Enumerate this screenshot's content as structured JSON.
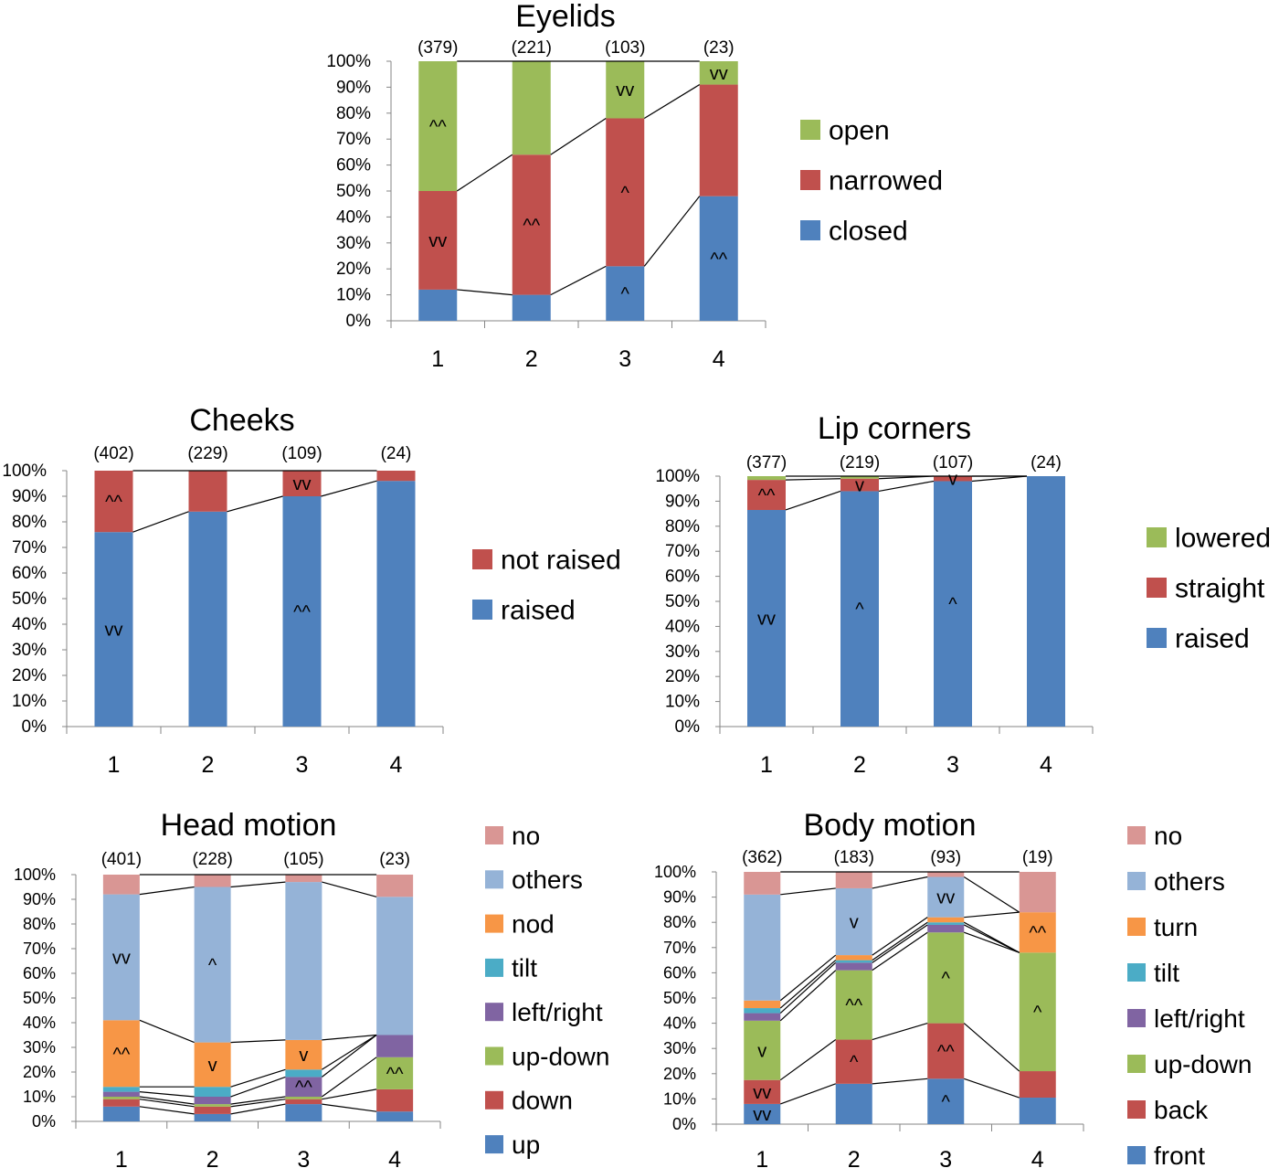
{
  "chart_data": [
    {
      "id": "eyelids",
      "type": "bar",
      "stacked": true,
      "title": "Eyelids",
      "categories": [
        "1",
        "2",
        "3",
        "4"
      ],
      "counts": [
        "(379)",
        "(221)",
        "(103)",
        "(23)"
      ],
      "ylim": [
        0,
        100
      ],
      "yticks": [
        "0%",
        "10%",
        "20%",
        "30%",
        "40%",
        "50%",
        "60%",
        "70%",
        "80%",
        "90%",
        "100%"
      ],
      "series": [
        {
          "name": "closed",
          "color": "#4F81BD",
          "values": [
            12,
            10,
            21,
            48
          ]
        },
        {
          "name": "narrowed",
          "color": "#C0504D",
          "values": [
            38,
            54,
            57,
            43
          ]
        },
        {
          "name": "open",
          "color": "#9BBB59",
          "values": [
            50,
            36,
            22,
            9
          ]
        }
      ],
      "annotations": [
        {
          "series": "narrowed",
          "category": "1",
          "text": "vv"
        },
        {
          "series": "open",
          "category": "1",
          "text": "^^"
        },
        {
          "series": "narrowed",
          "category": "2",
          "text": "^^"
        },
        {
          "series": "closed",
          "category": "3",
          "text": "^"
        },
        {
          "series": "narrowed",
          "category": "3",
          "text": "^"
        },
        {
          "series": "open",
          "category": "3",
          "text": "vv"
        },
        {
          "series": "closed",
          "category": "4",
          "text": "^^"
        },
        {
          "series": "open",
          "category": "4",
          "text": "vv"
        }
      ]
    },
    {
      "id": "cheeks",
      "type": "bar",
      "stacked": true,
      "title": "Cheeks",
      "categories": [
        "1",
        "2",
        "3",
        "4"
      ],
      "counts": [
        "(402)",
        "(229)",
        "(109)",
        "(24)"
      ],
      "ylim": [
        0,
        100
      ],
      "yticks": [
        "0%",
        "10%",
        "20%",
        "30%",
        "40%",
        "50%",
        "60%",
        "70%",
        "80%",
        "90%",
        "100%"
      ],
      "series": [
        {
          "name": "raised",
          "color": "#4F81BD",
          "values": [
            76,
            84,
            90,
            96
          ]
        },
        {
          "name": "not raised",
          "color": "#C0504D",
          "values": [
            24,
            16,
            10,
            4
          ]
        }
      ],
      "annotations": [
        {
          "series": "raised",
          "category": "1",
          "text": "vv"
        },
        {
          "series": "not raised",
          "category": "1",
          "text": "^^"
        },
        {
          "series": "raised",
          "category": "3",
          "text": "^^"
        },
        {
          "series": "not raised",
          "category": "3",
          "text": "vv"
        }
      ]
    },
    {
      "id": "lip-corners",
      "type": "bar",
      "stacked": true,
      "title": "Lip corners",
      "categories": [
        "1",
        "2",
        "3",
        "4"
      ],
      "counts": [
        "(377)",
        "(219)",
        "(107)",
        "(24)"
      ],
      "ylim": [
        0,
        100
      ],
      "yticks": [
        "0%",
        "10%",
        "20%",
        "30%",
        "40%",
        "50%",
        "60%",
        "70%",
        "80%",
        "90%",
        "100%"
      ],
      "series": [
        {
          "name": "raised",
          "color": "#4F81BD",
          "values": [
            86.5,
            94,
            98,
            100
          ]
        },
        {
          "name": "straight",
          "color": "#C0504D",
          "values": [
            12,
            5,
            2,
            0
          ]
        },
        {
          "name": "lowered",
          "color": "#9BBB59",
          "values": [
            1.5,
            1,
            0,
            0
          ]
        }
      ],
      "annotations": [
        {
          "series": "raised",
          "category": "1",
          "text": "vv"
        },
        {
          "series": "straight",
          "category": "1",
          "text": "^^"
        },
        {
          "series": "raised",
          "category": "2",
          "text": "^"
        },
        {
          "series": "straight",
          "category": "2",
          "text": "v"
        },
        {
          "series": "raised",
          "category": "3",
          "text": "^"
        },
        {
          "series": "straight",
          "category": "3",
          "text": "v"
        }
      ]
    },
    {
      "id": "head-motion",
      "type": "bar",
      "stacked": true,
      "title": "Head motion",
      "categories": [
        "1",
        "2",
        "3",
        "4"
      ],
      "counts": [
        "(401)",
        "(228)",
        "(105)",
        "(23)"
      ],
      "ylim": [
        0,
        100
      ],
      "yticks": [
        "0%",
        "10%",
        "20%",
        "30%",
        "40%",
        "50%",
        "60%",
        "70%",
        "80%",
        "90%",
        "100%"
      ],
      "series": [
        {
          "name": "up",
          "color": "#4F81BD",
          "values": [
            6,
            3,
            7,
            4
          ]
        },
        {
          "name": "down",
          "color": "#C0504D",
          "values": [
            3,
            3,
            2,
            9
          ]
        },
        {
          "name": "up-down",
          "color": "#9BBB59",
          "values": [
            1,
            1,
            1,
            13
          ]
        },
        {
          "name": "left/right",
          "color": "#8064A2",
          "values": [
            2,
            3,
            8,
            9
          ]
        },
        {
          "name": "tilt",
          "color": "#4BACC6",
          "values": [
            2,
            4,
            3,
            0
          ]
        },
        {
          "name": "nod",
          "color": "#F79646",
          "values": [
            27,
            18,
            12,
            0
          ]
        },
        {
          "name": "others",
          "color": "#95B3D7",
          "values": [
            51,
            63,
            64,
            56
          ]
        },
        {
          "name": "no",
          "color": "#D99694",
          "values": [
            8,
            5,
            3,
            9
          ]
        }
      ],
      "annotations": [
        {
          "series": "nod",
          "category": "1",
          "text": "^^"
        },
        {
          "series": "others",
          "category": "1",
          "text": "vv"
        },
        {
          "series": "nod",
          "category": "2",
          "text": "v"
        },
        {
          "series": "others",
          "category": "2",
          "text": "^"
        },
        {
          "series": "left/right",
          "category": "3",
          "text": "^^"
        },
        {
          "series": "nod",
          "category": "3",
          "text": "v"
        },
        {
          "series": "up-down",
          "category": "4",
          "text": "^^"
        }
      ]
    },
    {
      "id": "body-motion",
      "type": "bar",
      "stacked": true,
      "title": "Body motion",
      "categories": [
        "1",
        "2",
        "3",
        "4"
      ],
      "counts": [
        "(362)",
        "(183)",
        "(93)",
        "(19)"
      ],
      "ylim": [
        0,
        100
      ],
      "yticks": [
        "0%",
        "10%",
        "20%",
        "30%",
        "40%",
        "50%",
        "60%",
        "70%",
        "80%",
        "90%",
        "100%"
      ],
      "series": [
        {
          "name": "front",
          "color": "#4F81BD",
          "values": [
            8,
            16,
            18,
            10.5
          ]
        },
        {
          "name": "back",
          "color": "#C0504D",
          "values": [
            9.5,
            17.5,
            22,
            10.5
          ]
        },
        {
          "name": "up-down",
          "color": "#9BBB59",
          "values": [
            23.5,
            27.5,
            36,
            47
          ]
        },
        {
          "name": "left/right",
          "color": "#8064A2",
          "values": [
            3,
            3,
            3,
            0
          ]
        },
        {
          "name": "tilt",
          "color": "#4BACC6",
          "values": [
            2,
            1,
            1,
            0
          ]
        },
        {
          "name": "turn",
          "color": "#F79646",
          "values": [
            3,
            2,
            2,
            16
          ]
        },
        {
          "name": "others",
          "color": "#95B3D7",
          "values": [
            42,
            26.5,
            16,
            0
          ]
        },
        {
          "name": "no",
          "color": "#D99694",
          "values": [
            9,
            6.5,
            2,
            16
          ]
        }
      ],
      "annotations": [
        {
          "series": "front",
          "category": "1",
          "text": "vv"
        },
        {
          "series": "back",
          "category": "1",
          "text": "vv"
        },
        {
          "series": "up-down",
          "category": "1",
          "text": "v"
        },
        {
          "series": "back",
          "category": "2",
          "text": "^"
        },
        {
          "series": "up-down",
          "category": "2",
          "text": "^^"
        },
        {
          "series": "others",
          "category": "2",
          "text": "v"
        },
        {
          "series": "front",
          "category": "3",
          "text": "^"
        },
        {
          "series": "back",
          "category": "3",
          "text": "^^"
        },
        {
          "series": "up-down",
          "category": "3",
          "text": "^"
        },
        {
          "series": "others",
          "category": "3",
          "text": "vv"
        },
        {
          "series": "up-down",
          "category": "4",
          "text": "^"
        },
        {
          "series": "turn",
          "category": "4",
          "text": "^^"
        }
      ]
    }
  ]
}
